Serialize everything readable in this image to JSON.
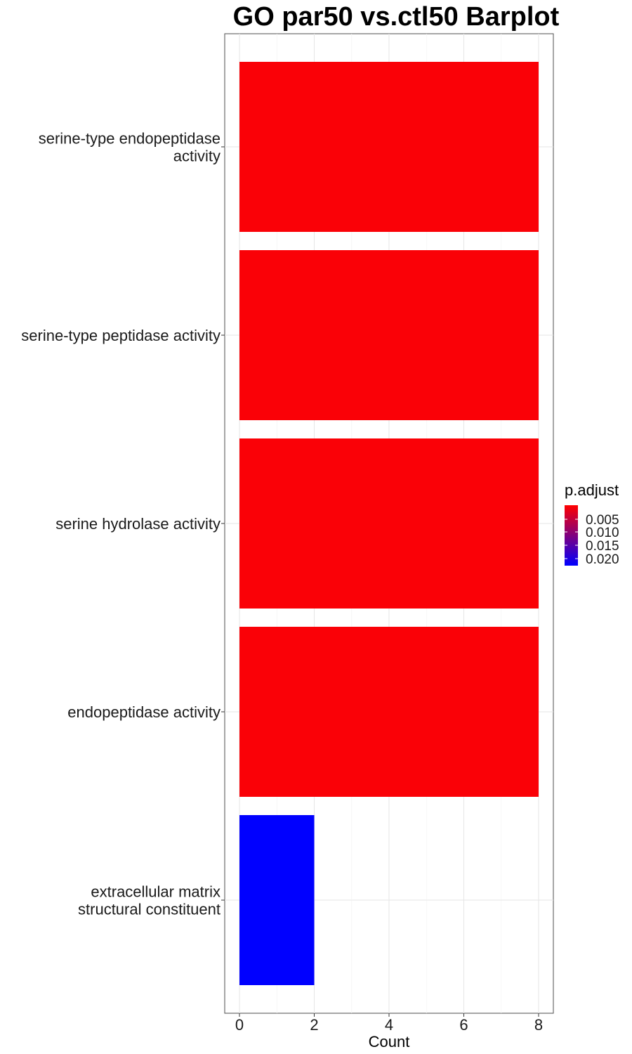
{
  "chart_data": {
    "type": "bar",
    "orientation": "horizontal",
    "title": "GO par50 vs.ctl50 Barplot",
    "xlabel": "Count",
    "ylabel": "",
    "xlim": [
      0,
      8.4
    ],
    "x_ticks": [
      "0",
      "2",
      "4",
      "6",
      "8"
    ],
    "grid": true,
    "categories": [
      [
        "serine-type endopeptidase",
        "activity"
      ],
      [
        "serine-type peptidase activity"
      ],
      [
        "serine hydrolase activity"
      ],
      [
        "endopeptidase activity"
      ],
      [
        "extracellular matrix",
        "structural constituent"
      ]
    ],
    "values": [
      8,
      8,
      8,
      8,
      2
    ],
    "p_adjust": [
      0.0007,
      0.0007,
      0.0007,
      0.0007,
      0.022
    ],
    "colors": [
      "#FA0107",
      "#FA0107",
      "#FA0107",
      "#FA0107",
      "#0000FF"
    ],
    "legend": {
      "title": "p.adjust",
      "position": "right",
      "labels": [
        "0.005",
        "0.010",
        "0.015",
        "0.020"
      ],
      "color_low": "#FF0000",
      "color_high": "#0000FF"
    }
  }
}
